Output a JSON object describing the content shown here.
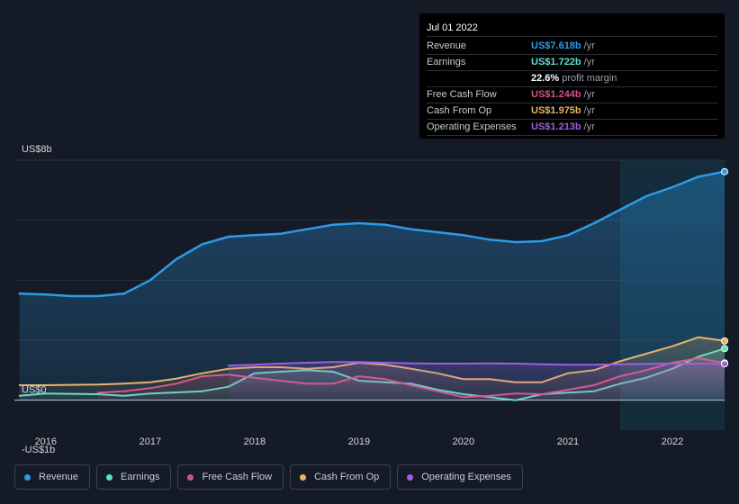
{
  "tooltip": {
    "date": "Jul 01 2022",
    "rows": [
      {
        "label": "Revenue",
        "value": "US$7.618b",
        "unit": "/yr",
        "color": "#2d9be8"
      },
      {
        "label": "Earnings",
        "value": "US$1.722b",
        "unit": "/yr",
        "color": "#5ce0cf"
      },
      {
        "label": "",
        "value": "22.6%",
        "unit": "profit margin",
        "color": "#ffffff"
      },
      {
        "label": "Free Cash Flow",
        "value": "US$1.244b",
        "unit": "/yr",
        "color": "#d4508a"
      },
      {
        "label": "Cash From Op",
        "value": "US$1.975b",
        "unit": "/yr",
        "color": "#e7b46a"
      },
      {
        "label": "Operating Expenses",
        "value": "US$1.213b",
        "unit": "/yr",
        "color": "#a35ce6"
      }
    ]
  },
  "legend": [
    {
      "label": "Revenue",
      "color": "#2d9be8"
    },
    {
      "label": "Earnings",
      "color": "#5ce0cf"
    },
    {
      "label": "Free Cash Flow",
      "color": "#d4508a"
    },
    {
      "label": "Cash From Op",
      "color": "#e7b46a"
    },
    {
      "label": "Operating Expenses",
      "color": "#a35ce6"
    }
  ],
  "chart_data": {
    "type": "area",
    "title": "",
    "xlabel": "",
    "ylabel": "",
    "unit": "US$ billions",
    "xlim": [
      2015.7,
      2022.5
    ],
    "ylim": [
      -1,
      8
    ],
    "y_tick_labels": [
      {
        "value": 8,
        "label": "US$8b"
      },
      {
        "value": 0,
        "label": "US$0"
      },
      {
        "value": -1,
        "label": "-US$1b"
      }
    ],
    "x_tick_labels": [
      {
        "value": 2016,
        "label": "2016"
      },
      {
        "value": 2017,
        "label": "2017"
      },
      {
        "value": 2018,
        "label": "2018"
      },
      {
        "value": 2019,
        "label": "2019"
      },
      {
        "value": 2020,
        "label": "2020"
      },
      {
        "value": 2021,
        "label": "2021"
      },
      {
        "value": 2022,
        "label": "2022"
      }
    ],
    "highlight_from": 2021.5,
    "series": [
      {
        "name": "Revenue",
        "color": "#2d9be8",
        "x": [
          2015.75,
          2016.0,
          2016.25,
          2016.5,
          2016.75,
          2017.0,
          2017.25,
          2017.5,
          2017.75,
          2018.0,
          2018.25,
          2018.5,
          2018.75,
          2019.0,
          2019.25,
          2019.5,
          2019.75,
          2020.0,
          2020.25,
          2020.5,
          2020.75,
          2021.0,
          2021.25,
          2021.5,
          2021.75,
          2022.0,
          2022.25,
          2022.5
        ],
        "values": [
          3.55,
          3.52,
          3.47,
          3.47,
          3.55,
          4.0,
          4.7,
          5.2,
          5.45,
          5.5,
          5.55,
          5.7,
          5.85,
          5.9,
          5.85,
          5.7,
          5.6,
          5.5,
          5.35,
          5.27,
          5.3,
          5.5,
          5.9,
          6.35,
          6.8,
          7.1,
          7.45,
          7.618
        ]
      },
      {
        "name": "Earnings",
        "color": "#5ce0cf",
        "x": [
          2015.75,
          2016.0,
          2016.5,
          2016.75,
          2017.0,
          2017.5,
          2017.75,
          2018.0,
          2018.25,
          2018.5,
          2018.75,
          2019.0,
          2019.25,
          2019.5,
          2019.75,
          2020.0,
          2020.25,
          2020.5,
          2020.75,
          2021.0,
          2021.25,
          2021.5,
          2021.75,
          2022.0,
          2022.25,
          2022.5
        ],
        "values": [
          0.15,
          0.22,
          0.2,
          0.15,
          0.22,
          0.3,
          0.45,
          0.9,
          0.95,
          1.0,
          0.95,
          0.65,
          0.6,
          0.55,
          0.35,
          0.2,
          0.1,
          0.0,
          0.2,
          0.25,
          0.3,
          0.55,
          0.75,
          1.05,
          1.45,
          1.722
        ]
      },
      {
        "name": "Free Cash Flow",
        "color": "#d4508a",
        "x": [
          2016.5,
          2016.75,
          2017.0,
          2017.25,
          2017.5,
          2017.75,
          2018.0,
          2018.25,
          2018.5,
          2018.75,
          2019.0,
          2019.25,
          2019.5,
          2019.75,
          2020.0,
          2020.25,
          2020.5,
          2020.75,
          2021.0,
          2021.25,
          2021.5,
          2021.75,
          2022.0,
          2022.25,
          2022.5
        ],
        "values": [
          0.25,
          0.3,
          0.4,
          0.55,
          0.8,
          0.85,
          0.75,
          0.65,
          0.55,
          0.55,
          0.8,
          0.7,
          0.5,
          0.3,
          0.1,
          0.15,
          0.22,
          0.2,
          0.35,
          0.5,
          0.8,
          1.0,
          1.25,
          1.4,
          1.244
        ]
      },
      {
        "name": "Cash From Op",
        "color": "#e7b46a",
        "x": [
          2015.75,
          2016.0,
          2016.5,
          2016.75,
          2017.0,
          2017.25,
          2017.5,
          2017.75,
          2018.0,
          2018.25,
          2018.5,
          2018.75,
          2019.0,
          2019.25,
          2019.5,
          2019.75,
          2020.0,
          2020.25,
          2020.5,
          2020.75,
          2021.0,
          2021.25,
          2021.5,
          2021.75,
          2022.0,
          2022.25,
          2022.5
        ],
        "values": [
          0.5,
          0.5,
          0.52,
          0.55,
          0.6,
          0.72,
          0.9,
          1.05,
          1.1,
          1.1,
          1.05,
          1.1,
          1.25,
          1.18,
          1.05,
          0.9,
          0.7,
          0.7,
          0.6,
          0.6,
          0.9,
          1.0,
          1.3,
          1.55,
          1.8,
          2.1,
          1.975
        ]
      },
      {
        "name": "Operating Expenses",
        "color": "#a35ce6",
        "x": [
          2017.75,
          2018.0,
          2018.25,
          2018.5,
          2018.75,
          2019.0,
          2019.25,
          2019.5,
          2019.75,
          2020.0,
          2020.25,
          2020.5,
          2020.75,
          2021.0,
          2021.25,
          2021.5,
          2021.75,
          2022.0,
          2022.25,
          2022.5
        ],
        "values": [
          1.15,
          1.18,
          1.22,
          1.25,
          1.27,
          1.27,
          1.25,
          1.23,
          1.22,
          1.22,
          1.23,
          1.22,
          1.2,
          1.18,
          1.18,
          1.2,
          1.21,
          1.22,
          1.22,
          1.213
        ]
      }
    ]
  }
}
